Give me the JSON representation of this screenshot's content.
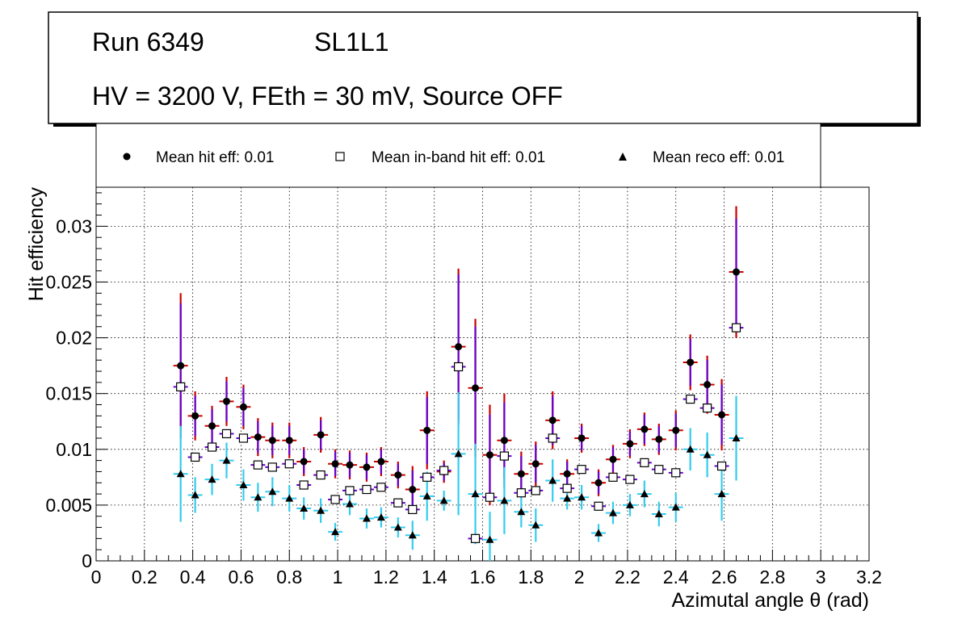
{
  "title_box": {
    "run": "Run 6349",
    "layer": "SL1L1",
    "conditions": "HV = 3200 V, FEth = 30 mV, Source OFF"
  },
  "legend": {
    "hit": "Mean hit  eff: 0.01",
    "inband": "Mean in-band hit eff: 0.01",
    "reco": "Mean reco eff: 0.01"
  },
  "colors": {
    "hit_err_outer": "#cc0000",
    "hit_err_inner": "#6600cc",
    "reco_err": "#33ccee",
    "marker": "#000000"
  },
  "chart_data": {
    "type": "scatter",
    "title": "",
    "xlabel": "Azimutal angle θ (rad)",
    "ylabel": "Hit efficiency",
    "xlim": [
      0,
      3.2
    ],
    "ylim": [
      0,
      0.0335
    ],
    "grid": true,
    "legend_position": "top",
    "x_ticks": [
      "0",
      "0.2",
      "0.4",
      "0.6",
      "0.8",
      "1",
      "1.2",
      "1.4",
      "1.6",
      "1.8",
      "2",
      "2.2",
      "2.4",
      "2.6",
      "2.8",
      "3",
      "3.2"
    ],
    "y_ticks": [
      "0",
      "0.005",
      "0.01",
      "0.015",
      "0.02",
      "0.025",
      "0.03"
    ],
    "bin_half_width": 0.03,
    "series": [
      {
        "name": "Mean hit  eff: 0.01",
        "marker": "filled-circle",
        "x": [
          0.35,
          0.41,
          0.48,
          0.54,
          0.61,
          0.67,
          0.73,
          0.8,
          0.86,
          0.93,
          0.99,
          1.05,
          1.12,
          1.18,
          1.25,
          1.31,
          1.37,
          1.44,
          1.5,
          1.57,
          1.63,
          1.69,
          1.76,
          1.82,
          1.89,
          1.95,
          2.01,
          2.08,
          2.14,
          2.21,
          2.27,
          2.33,
          2.4,
          2.46,
          2.53,
          2.59,
          2.65
        ],
        "y": [
          0.0175,
          0.013,
          0.0121,
          0.0143,
          0.0138,
          0.0111,
          0.0108,
          0.0108,
          0.0089,
          0.0113,
          0.0087,
          0.0086,
          0.0084,
          0.0089,
          0.0077,
          0.0064,
          0.0117,
          0.008,
          0.0192,
          0.0155,
          0.0095,
          0.0108,
          0.0078,
          0.0087,
          0.0126,
          0.0078,
          0.011,
          0.007,
          0.0091,
          0.0105,
          0.0118,
          0.0109,
          0.0117,
          0.0178,
          0.0158,
          0.0131,
          0.0259
        ],
        "err_outer": [
          0.0065,
          0.0022,
          0.0018,
          0.0022,
          0.002,
          0.0017,
          0.0016,
          0.0016,
          0.0013,
          0.0016,
          0.0013,
          0.0013,
          0.0013,
          0.0013,
          0.0012,
          0.0021,
          0.0035,
          0.001,
          0.007,
          0.0062,
          0.0045,
          0.0042,
          0.002,
          0.002,
          0.0026,
          0.0013,
          0.0013,
          0.0012,
          0.0013,
          0.0013,
          0.0015,
          0.0014,
          0.0018,
          0.0025,
          0.0026,
          0.0032,
          0.0059
        ],
        "err_inner": [
          0.0056,
          0.0018,
          0.0015,
          0.0018,
          0.0017,
          0.0014,
          0.0013,
          0.0013,
          0.0011,
          0.0013,
          0.0011,
          0.0011,
          0.0011,
          0.0011,
          0.001,
          0.0017,
          0.003,
          0.0008,
          0.0065,
          0.0055,
          0.0036,
          0.0034,
          0.0016,
          0.0017,
          0.0022,
          0.0011,
          0.0011,
          0.001,
          0.0011,
          0.0011,
          0.0013,
          0.0012,
          0.0015,
          0.0021,
          0.0022,
          0.0027,
          0.0048
        ]
      },
      {
        "name": "Mean in-band hit eff: 0.01",
        "marker": "open-square",
        "x": [
          0.35,
          0.41,
          0.48,
          0.54,
          0.61,
          0.67,
          0.73,
          0.8,
          0.86,
          0.93,
          0.99,
          1.05,
          1.12,
          1.18,
          1.25,
          1.31,
          1.37,
          1.44,
          1.5,
          1.57,
          1.63,
          1.69,
          1.76,
          1.82,
          1.89,
          1.95,
          2.01,
          2.08,
          2.14,
          2.21,
          2.27,
          2.33,
          2.4,
          2.46,
          2.53,
          2.59,
          2.65
        ],
        "y": [
          0.0156,
          0.0093,
          0.0102,
          0.0114,
          0.011,
          0.0086,
          0.0084,
          0.0087,
          0.0068,
          0.0077,
          0.0055,
          0.0063,
          0.0064,
          0.0066,
          0.0052,
          0.0046,
          0.0075,
          0.0081,
          0.0174,
          0.002,
          0.0057,
          0.0094,
          0.0061,
          0.0063,
          0.011,
          0.0065,
          0.0082,
          0.0049,
          0.0075,
          0.0073,
          0.0088,
          0.0082,
          0.0079,
          0.0145,
          0.0137,
          0.0085,
          0.0209
        ]
      },
      {
        "name": "Mean reco eff: 0.01",
        "marker": "filled-triangle",
        "x": [
          0.35,
          0.41,
          0.48,
          0.54,
          0.61,
          0.67,
          0.73,
          0.8,
          0.86,
          0.93,
          0.99,
          1.05,
          1.12,
          1.18,
          1.25,
          1.31,
          1.37,
          1.44,
          1.5,
          1.57,
          1.63,
          1.69,
          1.76,
          1.82,
          1.89,
          1.95,
          2.01,
          2.08,
          2.14,
          2.21,
          2.27,
          2.33,
          2.4,
          2.46,
          2.53,
          2.59,
          2.65
        ],
        "y": [
          0.0078,
          0.0059,
          0.0073,
          0.009,
          0.0068,
          0.0057,
          0.0062,
          0.0056,
          0.0047,
          0.0045,
          0.0026,
          0.0051,
          0.0038,
          0.0039,
          0.003,
          0.0023,
          0.0058,
          0.0054,
          0.0096,
          0.006,
          0.0019,
          0.0054,
          0.0044,
          0.0032,
          0.0072,
          0.0056,
          0.0057,
          0.0025,
          0.0043,
          0.005,
          0.006,
          0.0042,
          0.0048,
          0.01,
          0.0095,
          0.006,
          0.011
        ],
        "err": [
          0.0043,
          0.0016,
          0.0014,
          0.0016,
          0.0014,
          0.0013,
          0.0013,
          0.0012,
          0.001,
          0.0011,
          0.0008,
          0.001,
          0.0009,
          0.0009,
          0.0009,
          0.0013,
          0.0022,
          0.0009,
          0.0055,
          0.0045,
          0.0025,
          0.003,
          0.0014,
          0.0015,
          0.0019,
          0.001,
          0.0011,
          0.0008,
          0.001,
          0.001,
          0.0012,
          0.0011,
          0.0013,
          0.0019,
          0.002,
          0.0024,
          0.0038
        ]
      }
    ]
  }
}
